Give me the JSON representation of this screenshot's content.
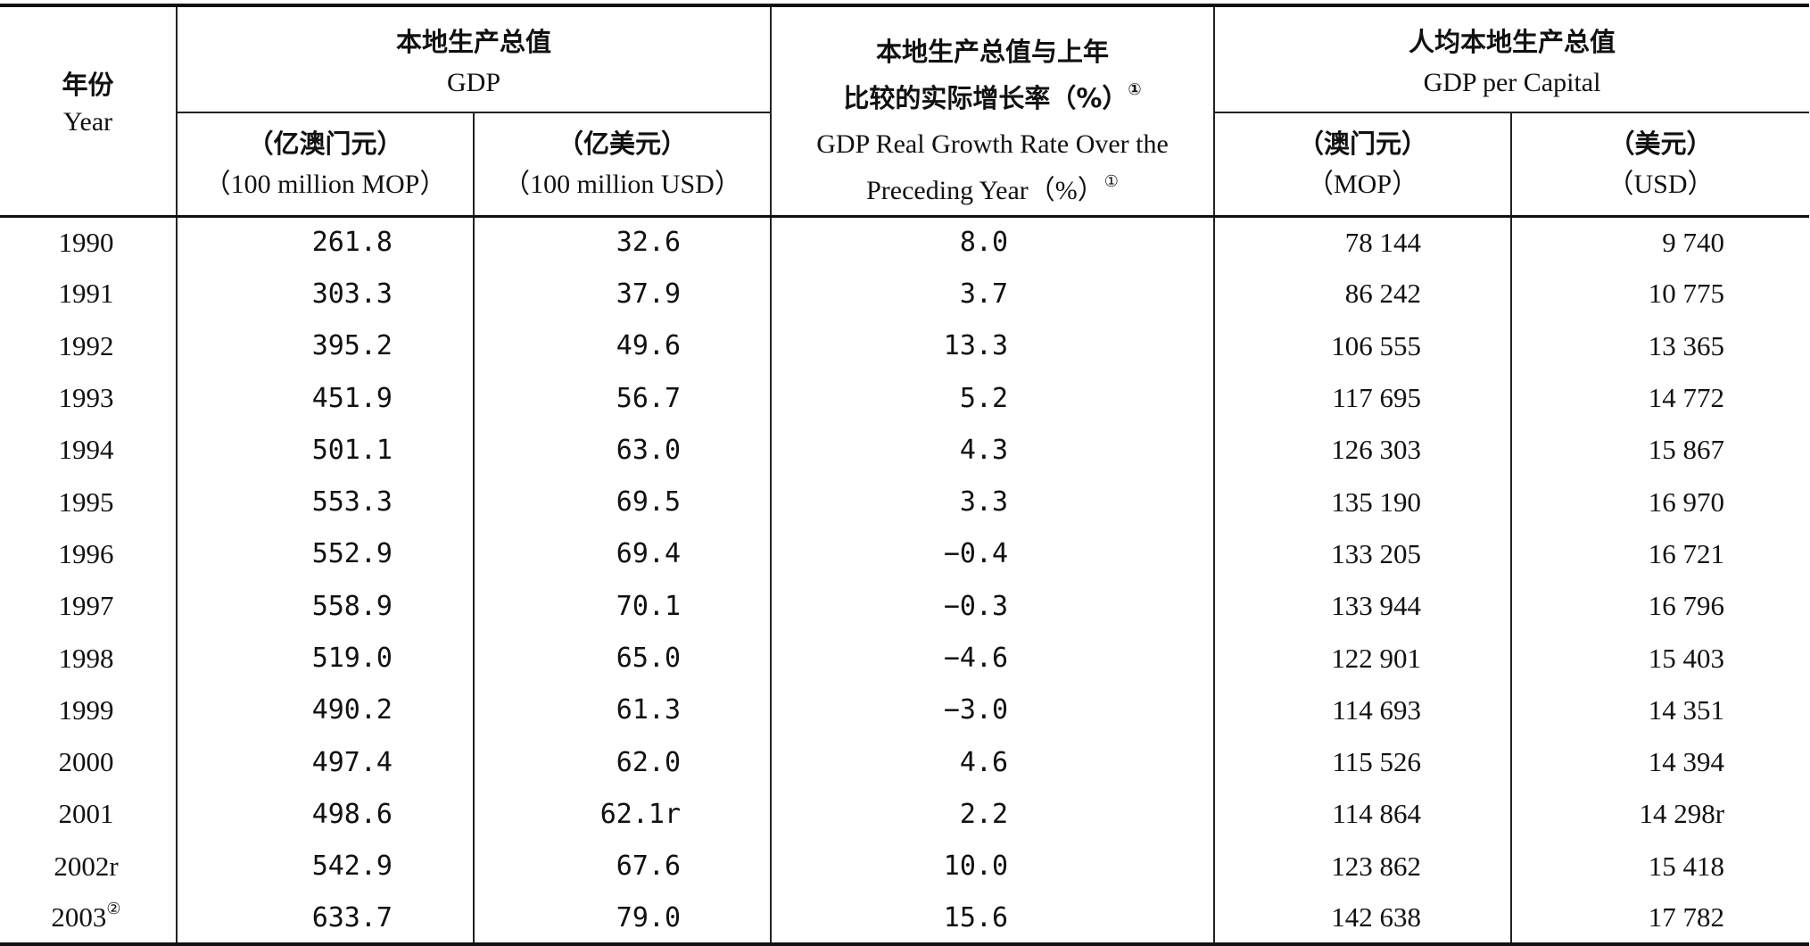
{
  "table": {
    "headers": {
      "year_cn": "年份",
      "year_en": "Year",
      "gdp_cn": "本地生产总值",
      "gdp_en": "GDP",
      "gdp_mop_cn": "（亿澳门元）",
      "gdp_mop_en": "（100 million MOP）",
      "gdp_usd_cn": "（亿美元）",
      "gdp_usd_en": "（100 million USD）",
      "growth_cn_1": "本地生产总值与上年",
      "growth_cn_2": "比较的实际增长率（%）",
      "growth_cn_note": "①",
      "growth_en_1": "GDP Real Growth Rate Over the",
      "growth_en_2": "Preceding Year（%）",
      "growth_en_note": "①",
      "per_capita_cn": "人均本地生产总值",
      "per_capita_en": "GDP per Capital",
      "pc_mop_cn": "（澳门元）",
      "pc_mop_en": "（MOP）",
      "pc_usd_cn": "（美元）",
      "pc_usd_en": "（USD）"
    },
    "rows": [
      {
        "year": "1990",
        "note": "",
        "gdp_mop": "261.8",
        "gdp_usd": "32.6",
        "growth": "8.0",
        "pc_mop": "78 144",
        "pc_usd": "9 740"
      },
      {
        "year": "1991",
        "note": "",
        "gdp_mop": "303.3",
        "gdp_usd": "37.9",
        "growth": "3.7",
        "pc_mop": "86 242",
        "pc_usd": "10 775"
      },
      {
        "year": "1992",
        "note": "",
        "gdp_mop": "395.2",
        "gdp_usd": "49.6",
        "growth": "13.3",
        "pc_mop": "106 555",
        "pc_usd": "13 365"
      },
      {
        "year": "1993",
        "note": "",
        "gdp_mop": "451.9",
        "gdp_usd": "56.7",
        "growth": "5.2",
        "pc_mop": "117 695",
        "pc_usd": "14 772"
      },
      {
        "year": "1994",
        "note": "",
        "gdp_mop": "501.1",
        "gdp_usd": "63.0",
        "growth": "4.3",
        "pc_mop": "126 303",
        "pc_usd": "15 867"
      },
      {
        "year": "1995",
        "note": "",
        "gdp_mop": "553.3",
        "gdp_usd": "69.5",
        "growth": "3.3",
        "pc_mop": "135 190",
        "pc_usd": "16 970"
      },
      {
        "year": "1996",
        "note": "",
        "gdp_mop": "552.9",
        "gdp_usd": "69.4",
        "growth": "−0.4",
        "pc_mop": "133 205",
        "pc_usd": "16 721"
      },
      {
        "year": "1997",
        "note": "",
        "gdp_mop": "558.9",
        "gdp_usd": "70.1",
        "growth": "−0.3",
        "pc_mop": "133 944",
        "pc_usd": "16 796"
      },
      {
        "year": "1998",
        "note": "",
        "gdp_mop": "519.0",
        "gdp_usd": "65.0",
        "growth": "−4.6",
        "pc_mop": "122 901",
        "pc_usd": "15 403"
      },
      {
        "year": "1999",
        "note": "",
        "gdp_mop": "490.2",
        "gdp_usd": "61.3",
        "growth": "−3.0",
        "pc_mop": "114 693",
        "pc_usd": "14 351"
      },
      {
        "year": "2000",
        "note": "",
        "gdp_mop": "497.4",
        "gdp_usd": "62.0",
        "growth": "4.6",
        "pc_mop": "115 526",
        "pc_usd": "14 394"
      },
      {
        "year": "2001",
        "note": "",
        "gdp_mop": "498.6",
        "gdp_usd": "62.1r",
        "growth": "2.2",
        "pc_mop": "114 864",
        "pc_usd": "14 298r"
      },
      {
        "year": "2002r",
        "note": "",
        "gdp_mop": "542.9",
        "gdp_usd": "67.6",
        "growth": "10.0",
        "pc_mop": "123 862",
        "pc_usd": "15 418"
      },
      {
        "year": "2003",
        "note": "②",
        "gdp_mop": "633.7",
        "gdp_usd": "79.0",
        "growth": "15.6",
        "pc_mop": "142 638",
        "pc_usd": "17 782"
      }
    ]
  }
}
